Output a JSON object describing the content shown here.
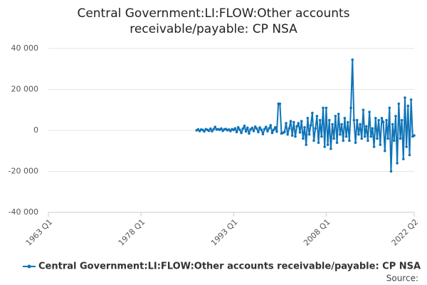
{
  "chart_data": {
    "type": "line",
    "title": "Central Government:LI:FLOW:Other accounts receivable/payable: CP NSA",
    "source": "Source:",
    "legend": "bottom",
    "grid": true,
    "xlim": [
      1963,
      2022.25
    ],
    "xticks": [
      {
        "value": 1963,
        "label": "1963 Q1"
      },
      {
        "value": 1978,
        "label": "1978 Q1"
      },
      {
        "value": 1993,
        "label": "1993 Q1"
      },
      {
        "value": 2008,
        "label": "2008 Q1"
      },
      {
        "value": 2022.25,
        "label": "2022 Q2"
      }
    ],
    "ylim": [
      -40000,
      40000
    ],
    "yticks": [
      {
        "value": -40000,
        "label": "-40 000"
      },
      {
        "value": -20000,
        "label": "-20 000"
      },
      0,
      {
        "value": 20000,
        "label": "20 000"
      },
      {
        "value": 40000,
        "label": "40 000"
      }
    ],
    "x": [
      1987,
      1987.25,
      1987.5,
      1987.75,
      1988,
      1988.25,
      1988.5,
      1988.75,
      1989,
      1989.25,
      1989.5,
      1989.75,
      1990,
      1990.25,
      1990.5,
      1990.75,
      1991,
      1991.25,
      1991.5,
      1991.75,
      1992,
      1992.25,
      1992.5,
      1992.75,
      1993,
      1993.25,
      1993.5,
      1993.75,
      1994,
      1994.25,
      1994.5,
      1994.75,
      1995,
      1995.25,
      1995.5,
      1995.75,
      1996,
      1996.25,
      1996.5,
      1996.75,
      1997,
      1997.25,
      1997.5,
      1997.75,
      1998,
      1998.25,
      1998.5,
      1998.75,
      1999,
      1999.25,
      1999.5,
      1999.75,
      2000,
      2000.25,
      2000.5,
      2000.75,
      2001,
      2001.25,
      2001.5,
      2001.75,
      2002,
      2002.25,
      2002.5,
      2002.75,
      2003,
      2003.25,
      2003.5,
      2003.75,
      2004,
      2004.25,
      2004.5,
      2004.75,
      2005,
      2005.25,
      2005.5,
      2005.75,
      2006,
      2006.25,
      2006.5,
      2006.75,
      2007,
      2007.25,
      2007.5,
      2007.75,
      2008,
      2008.25,
      2008.5,
      2008.75,
      2009,
      2009.25,
      2009.5,
      2009.75,
      2010,
      2010.25,
      2010.5,
      2010.75,
      2011,
      2011.25,
      2011.5,
      2011.75,
      2012,
      2012.25,
      2012.5,
      2012.75,
      2013,
      2013.25,
      2013.5,
      2013.75,
      2014,
      2014.25,
      2014.5,
      2014.75,
      2015,
      2015.25,
      2015.5,
      2015.75,
      2016,
      2016.25,
      2016.5,
      2016.75,
      2017,
      2017.25,
      2017.5,
      2017.75,
      2018,
      2018.25,
      2018.5,
      2018.75,
      2019,
      2019.25,
      2019.5,
      2019.75,
      2020,
      2020.25,
      2020.5,
      2020.75,
      2021,
      2021.25,
      2021.5,
      2021.75,
      2022,
      2022.25
    ],
    "series": [
      {
        "name": "Central Government:LI:FLOW:Other accounts receivable/payable: CP NSA",
        "color": "#0f74b8",
        "values": [
          0,
          500,
          -300,
          400,
          200,
          -500,
          600,
          300,
          -200,
          800,
          -400,
          500,
          1700,
          400,
          600,
          300,
          900,
          -200,
          500,
          700,
          100,
          400,
          -300,
          600,
          200,
          1000,
          -800,
          1500,
          300,
          -1200,
          800,
          2200,
          -500,
          1300,
          -1500,
          500,
          1200,
          -300,
          1800,
          900,
          -800,
          1400,
          300,
          -1800,
          600,
          1700,
          -400,
          1000,
          2500,
          -1200,
          300,
          1500,
          -600,
          13000,
          13000,
          -1500,
          -1200,
          -800,
          3500,
          -2000,
          1000,
          4500,
          -2500,
          4000,
          -3000,
          2000,
          3500,
          -1000,
          4500,
          -4000,
          1500,
          -7000,
          6000,
          -2000,
          2500,
          8500,
          -5000,
          1000,
          7000,
          -6000,
          5000,
          -3000,
          11000,
          -8000,
          11000,
          -7000,
          5000,
          -9000,
          3000,
          -4000,
          7000,
          -6000,
          8000,
          -2000,
          3000,
          -5000,
          6000,
          -3000,
          4000,
          -5000,
          11000,
          34500,
          5000,
          -6000,
          5000,
          -2000,
          3000,
          -4000,
          10000,
          -3000,
          2000,
          -5000,
          9000,
          -3000,
          1000,
          -8000,
          6000,
          -4000,
          5000,
          -7000,
          6000,
          4000,
          -10000,
          5000,
          -4000,
          11000,
          -20000,
          3000,
          -5000,
          7000,
          -16000,
          13000,
          -4000,
          5000,
          -14000,
          16000,
          -8000,
          12000,
          -12000,
          15000,
          -3000,
          -2500
        ]
      }
    ]
  }
}
